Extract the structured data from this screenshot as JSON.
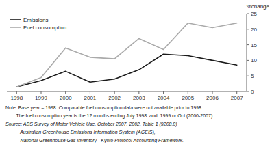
{
  "chart_data": {
    "type": "line",
    "x": [
      1998,
      1999,
      2000,
      2001,
      2002,
      2003,
      2004,
      2005,
      2006,
      2007
    ],
    "series": [
      {
        "name": "Emissions",
        "color": "#1a1a1a",
        "values": [
          1.5,
          3.5,
          6.5,
          3.0,
          4.0,
          7.0,
          12.0,
          11.5,
          10.0,
          8.5
        ]
      },
      {
        "name": "Fuel consumption",
        "color": "#aaaaaa",
        "values": [
          1.5,
          4.5,
          14.0,
          11.0,
          10.5,
          17.0,
          13.5,
          22.0,
          20.5,
          22.0
        ]
      }
    ],
    "ylabel": "%change",
    "xlim": [
      1997.6,
      2007.4
    ],
    "xticks": [
      1998,
      1999,
      2000,
      2001,
      2002,
      2003,
      2004,
      2005,
      2006,
      2007
    ],
    "ylim": [
      0,
      25
    ],
    "yticks": [
      0,
      5,
      10,
      15,
      20,
      25
    ],
    "grid": false,
    "legend": "upper left",
    "notes": [
      "Note: Base year = 1998. Comparable fuel consumption data were not available prior to 1998.",
      "        The fuel consumption year is the 12 months ending July 1998  and  1999 or Oct (2000-2007)"
    ],
    "sources": [
      "Source: ABS Survey of Motor Vehicle Use, October 2007, 2002, Table 1 (9208.0)",
      "           Australian Greenhouse Emissions Information System (AGEIS),",
      "           National Greenhouse Gas Inventory - Kyoto Protocol Accounting Framework."
    ]
  }
}
